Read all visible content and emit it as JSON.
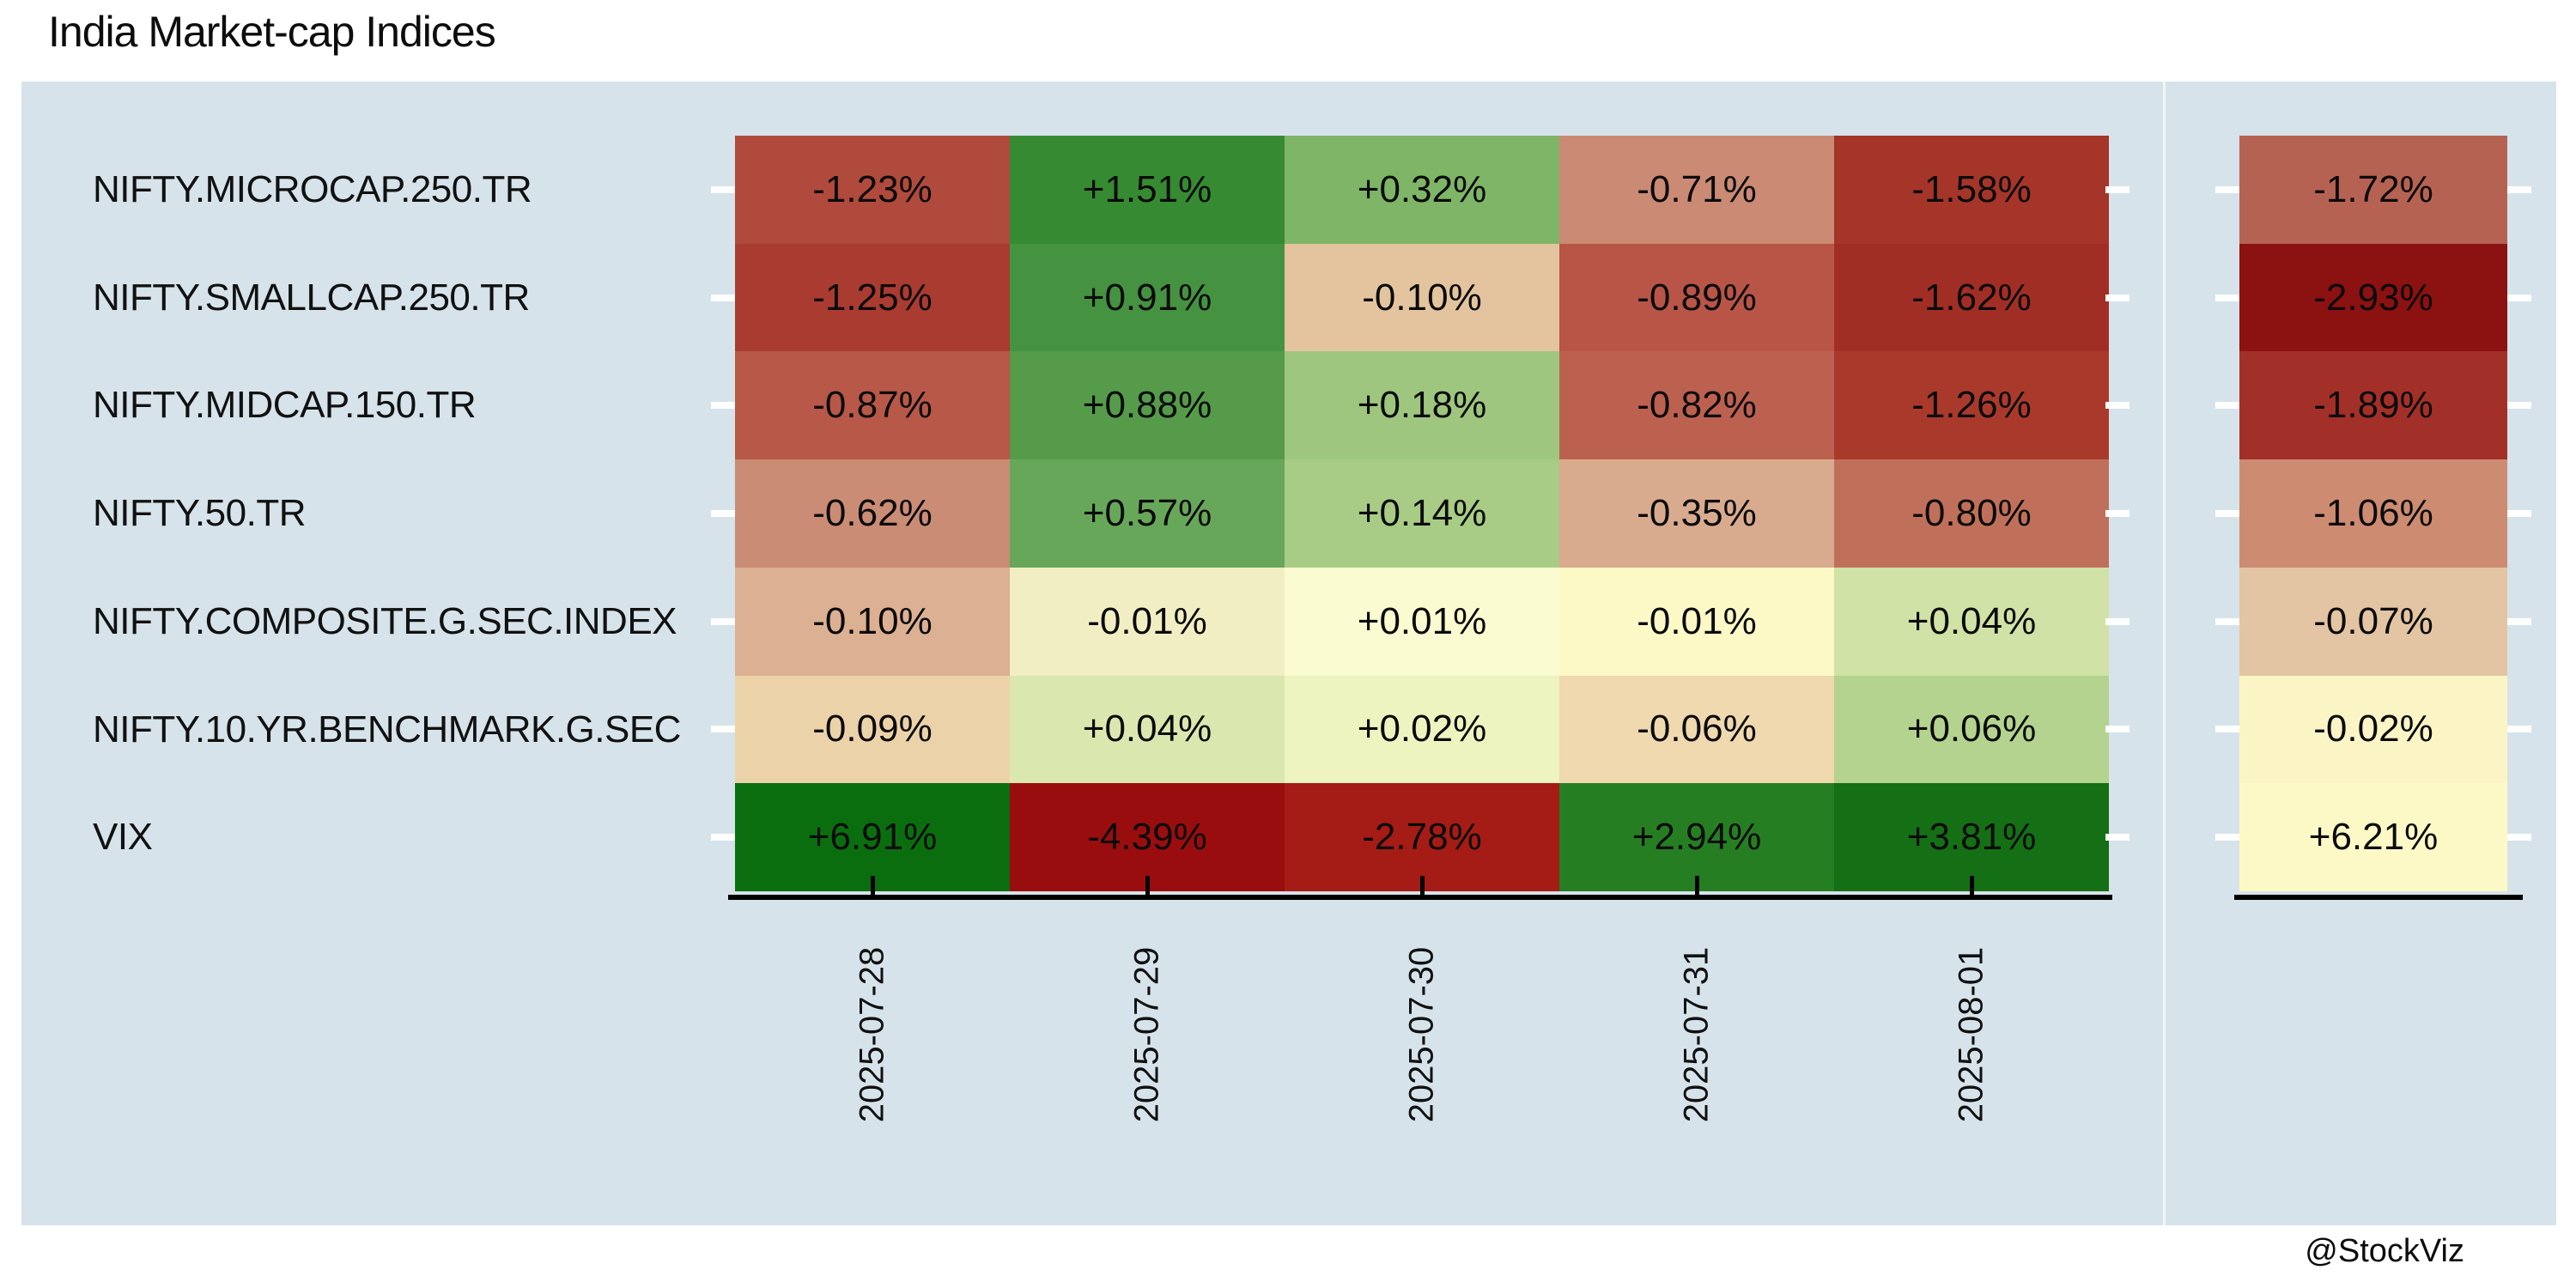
{
  "title": "India Market-cap Indices",
  "watermark": "@StockViz",
  "page": {
    "canvas_background": "#ffffff",
    "panel_background": "#d6e3ea",
    "axis_color": "#000000",
    "tick_color_y": "#ffffff"
  },
  "chart_data": {
    "type": "heatmap",
    "title": "India Market-cap Indices",
    "rows": [
      "NIFTY.MICROCAP.250.TR",
      "NIFTY.SMALLCAP.250.TR",
      "NIFTY.MIDCAP.150.TR",
      "NIFTY.50.TR",
      "NIFTY.COMPOSITE.G.SEC.INDEX",
      "NIFTY.10.YR.BENCHMARK.G.SEC",
      "VIX"
    ],
    "columns": [
      "2025-07-28",
      "2025-07-29",
      "2025-07-30",
      "2025-07-31",
      "2025-08-01"
    ],
    "values_pct": [
      [
        -1.23,
        1.51,
        0.32,
        -0.71,
        -1.58
      ],
      [
        -1.25,
        0.91,
        -0.1,
        -0.89,
        -1.62
      ],
      [
        -0.87,
        0.88,
        0.18,
        -0.82,
        -1.26
      ],
      [
        -0.62,
        0.57,
        0.14,
        -0.35,
        -0.8
      ],
      [
        -0.1,
        -0.01,
        0.01,
        -0.01,
        0.04
      ],
      [
        -0.09,
        0.04,
        0.02,
        -0.06,
        0.06
      ],
      [
        6.91,
        -4.39,
        -2.78,
        2.94,
        3.81
      ]
    ],
    "labels": [
      [
        "-1.23%",
        "+1.51%",
        "+0.32%",
        "-0.71%",
        "-1.58%"
      ],
      [
        "-1.25%",
        "+0.91%",
        "-0.10%",
        "-0.89%",
        "-1.62%"
      ],
      [
        "-0.87%",
        "+0.88%",
        "+0.18%",
        "-0.82%",
        "-1.26%"
      ],
      [
        "-0.62%",
        "+0.57%",
        "+0.14%",
        "-0.35%",
        "-0.80%"
      ],
      [
        "-0.10%",
        "-0.01%",
        "+0.01%",
        "-0.01%",
        "+0.04%"
      ],
      [
        "-0.09%",
        "+0.04%",
        "+0.02%",
        "-0.06%",
        "+0.06%"
      ],
      [
        "+6.91%",
        "-4.39%",
        "-2.78%",
        "+2.94%",
        "+3.81%"
      ]
    ],
    "cell_colors": [
      [
        "#b04a3d",
        "#368a31",
        "#7eb566",
        "#ca8a74",
        "#a53429"
      ],
      [
        "#a93b30",
        "#459240",
        "#e3c49e",
        "#b85547",
        "#a12e25"
      ],
      [
        "#b75848",
        "#559b4a",
        "#9ec67e",
        "#bc6150",
        "#a93a2b"
      ],
      [
        "#cb8c75",
        "#67a75a",
        "#a8cc85",
        "#d9ab8e",
        "#c0705a"
      ],
      [
        "#dcb092",
        "#f2eec3",
        "#fbfbd1",
        "#fdf9c7",
        "#d0e2a5"
      ],
      [
        "#ecd2a9",
        "#dae8af",
        "#eef4c0",
        "#f0d8af",
        "#b4d38e"
      ],
      [
        "#0a6e0f",
        "#9a0d0e",
        "#a41c15",
        "#267e22",
        "#146f15"
      ]
    ],
    "summary": {
      "values_pct": [
        -1.72,
        -2.93,
        -1.89,
        -1.06,
        -0.07,
        -0.02,
        6.21
      ],
      "labels": [
        "-1.72%",
        "-2.93%",
        "-1.89%",
        "-1.06%",
        "-0.07%",
        "-0.02%",
        "+6.21%"
      ],
      "colors": [
        "#b66253",
        "#8c1111",
        "#a33028",
        "#cd8b72",
        "#e3c5a3",
        "#fbf5c5",
        "#fdf9c7"
      ]
    },
    "colormap": "red-yellow-green",
    "legend": "none",
    "grid": false
  }
}
